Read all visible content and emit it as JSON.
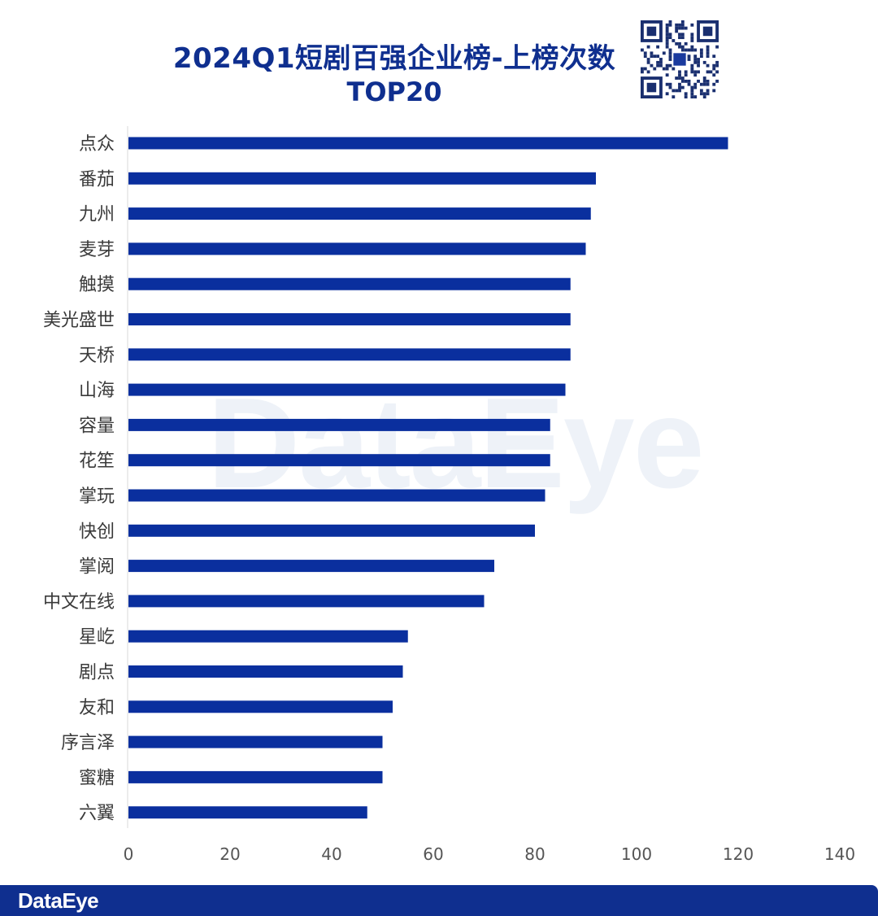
{
  "title_line1": "2024Q1短剧百强企业榜-上榜次数",
  "title_line2": "TOP20",
  "watermark": "DataEye",
  "footer": {
    "logo": "DataEye"
  },
  "colors": {
    "bar": "#0a2f9e",
    "title": "#0f2f8f",
    "footer": "#0f2f8f"
  },
  "chart_data": {
    "type": "bar",
    "orientation": "horizontal",
    "categories": [
      "点众",
      "番茄",
      "九州",
      "麦芽",
      "触摸",
      "美光盛世",
      "天桥",
      "山海",
      "容量",
      "花笙",
      "掌玩",
      "快创",
      "掌阅",
      "中文在线",
      "星屹",
      "剧点",
      "友和",
      "序言泽",
      "蜜糖",
      "六翼"
    ],
    "values": [
      118,
      92,
      91,
      90,
      87,
      87,
      87,
      86,
      83,
      83,
      82,
      80,
      72,
      70,
      55,
      54,
      52,
      50,
      50,
      47
    ],
    "xlim": [
      0,
      140
    ],
    "xticks": [
      0,
      20,
      40,
      60,
      80,
      100,
      120,
      140
    ],
    "grid": false,
    "legend": "none"
  }
}
